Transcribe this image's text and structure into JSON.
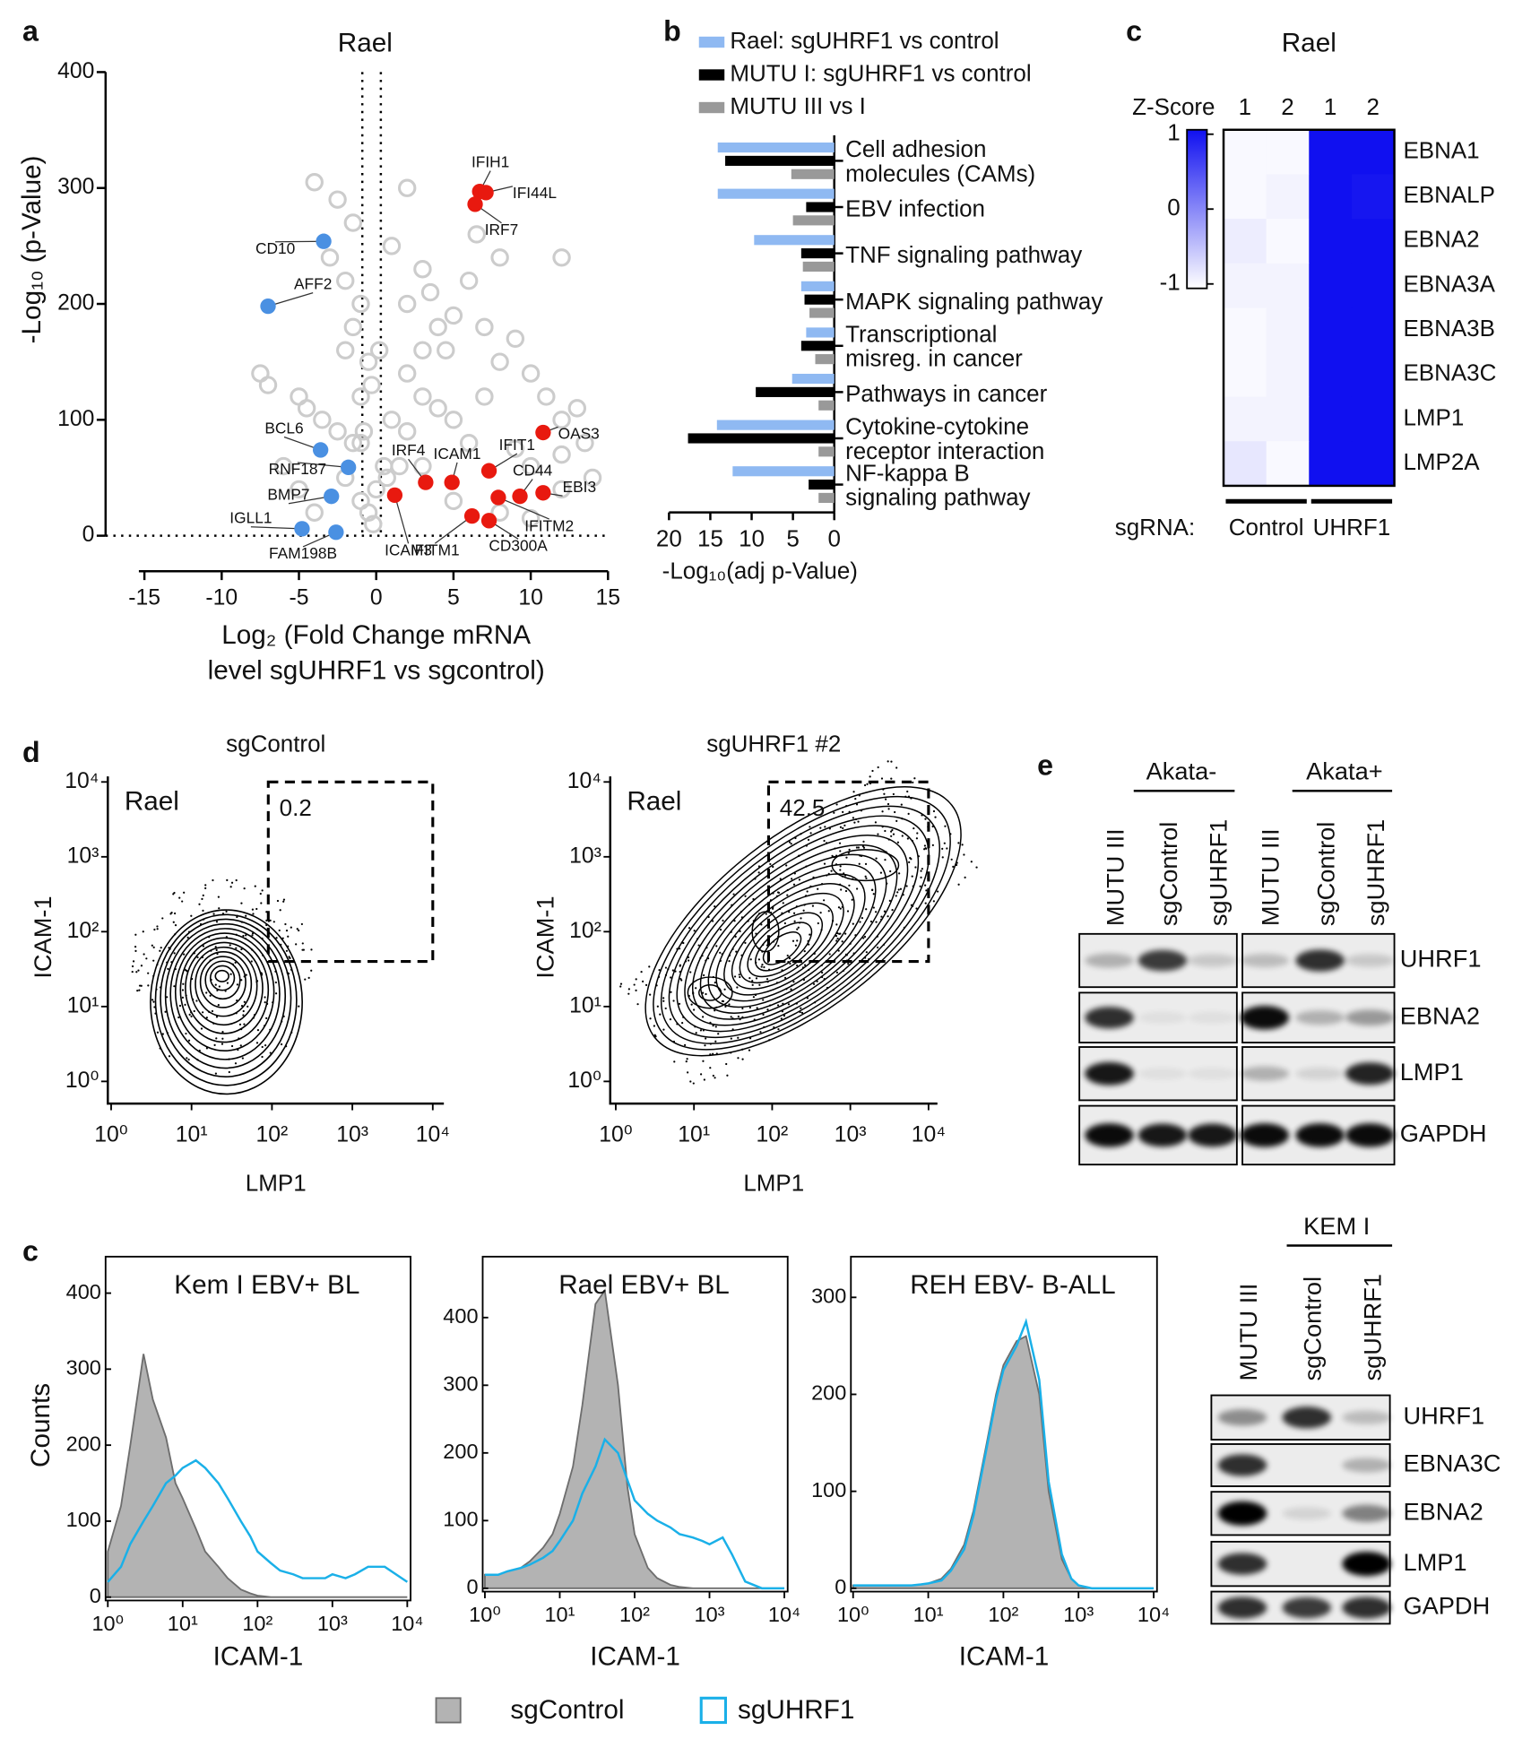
{
  "panel_labels": [
    "a",
    "b",
    "c",
    "d",
    "e",
    "c"
  ],
  "chart_data": [
    {
      "type": "scatter",
      "title": "Rael",
      "xlabel": [
        "Log₂ (Fold Change mRNA",
        "level sgUHRF1 vs sgcontrol)"
      ],
      "ylabel": "-Log₁₀ (p-Value)",
      "xlim": [
        -15,
        15
      ],
      "ylim": [
        0,
        400
      ],
      "xticks": [
        -15,
        -10,
        -5,
        0,
        5,
        10,
        15
      ],
      "yticks": [
        0,
        100,
        200,
        300,
        400
      ],
      "vlines": [
        -0.9,
        0.3
      ],
      "hlines": [
        0
      ],
      "series": [
        {
          "color": "#cccccc",
          "x": [
            -4,
            -2.5,
            -1.5,
            -3,
            -2,
            -1,
            -1.5,
            -2,
            -7.5,
            -7,
            -5,
            -4.5,
            -3.5,
            -2.5,
            -1.5,
            -6,
            -5,
            -4,
            -2,
            -1,
            -1,
            -0.5,
            2,
            3,
            3.5,
            4,
            5,
            4.5,
            6,
            7,
            8,
            9,
            10,
            11,
            12,
            13,
            13.5,
            10,
            9,
            6,
            5,
            3,
            2,
            1.5,
            3,
            5,
            8,
            10,
            12,
            14,
            2,
            3,
            6.5,
            8,
            12,
            1,
            2,
            4,
            7,
            12,
            -0.5,
            0,
            0.5,
            -1,
            1,
            -0.3,
            0.2,
            -0.8,
            0.7,
            -0.2
          ],
          "values": [
            305,
            290,
            270,
            240,
            220,
            200,
            180,
            160,
            140,
            130,
            120,
            110,
            100,
            90,
            80,
            60,
            40,
            20,
            50,
            30,
            120,
            150,
            300,
            230,
            210,
            180,
            190,
            160,
            220,
            180,
            150,
            170,
            140,
            120,
            100,
            110,
            80,
            60,
            75,
            80,
            100,
            120,
            90,
            60,
            60,
            30,
            20,
            15,
            40,
            50,
            140,
            160,
            260,
            240,
            240,
            250,
            200,
            110,
            120,
            70,
            20,
            40,
            60,
            80,
            100,
            130,
            160,
            90,
            50,
            10
          ]
        },
        {
          "color": "#e8190f",
          "labels": [
            "IFIH1",
            "IFI44L",
            "IRF7",
            "OAS3",
            "EBI3",
            "CD44",
            "IFIT1",
            "ICAM1",
            "IRF4",
            "ICAM3",
            "IFITM1",
            "CD300A",
            "IFITM2"
          ],
          "x": [
            6.7,
            7.1,
            6.4,
            10.8,
            10.8,
            9.3,
            7.3,
            4.9,
            3.2,
            1.2,
            6.2,
            7.3,
            7.9
          ],
          "values": [
            297,
            296,
            286,
            89,
            37,
            34,
            56,
            46,
            46,
            35,
            17,
            13,
            33
          ]
        },
        {
          "color": "#4a90e2",
          "labels": [
            "CD10",
            "AFF2",
            "BCL6",
            "RNF187",
            "BMP7",
            "IGLL1",
            "FAM198B"
          ],
          "x": [
            -3.4,
            -7.0,
            -3.6,
            -1.8,
            -2.9,
            -4.8,
            -2.6
          ],
          "values": [
            254,
            198,
            74,
            59,
            34,
            6,
            3
          ]
        }
      ]
    },
    {
      "type": "bar",
      "xlabel": "-Log₁₀(adj p-Value)",
      "xlim": [
        20,
        0
      ],
      "xticks": [
        20,
        15,
        10,
        5,
        0
      ],
      "categories": [
        [
          "Cell adhesion",
          "molecules (CAMs)"
        ],
        [
          "EBV infection"
        ],
        [
          "TNF signaling pathway"
        ],
        [
          "MAPK signaling pathway"
        ],
        [
          "Transcriptional",
          "misreg. in cancer"
        ],
        [
          "Pathways in cancer"
        ],
        [
          "Cytokine-cytokine",
          "receptor interaction"
        ],
        [
          "NF-kappa B",
          "signaling pathway"
        ]
      ],
      "series": [
        {
          "name": "Rael: sgUHRF1 vs control",
          "color": "#8fb9f2",
          "values": [
            14.1,
            14.1,
            9.7,
            4.0,
            3.4,
            5.1,
            14.2,
            12.3
          ]
        },
        {
          "name": "MUTU I: sgUHRF1 vs control",
          "color": "#000000",
          "values": [
            13.2,
            3.4,
            4.0,
            3.6,
            4.0,
            9.5,
            17.7,
            3.1
          ]
        },
        {
          "name": "MUTU III vs I",
          "color": "#999999",
          "values": [
            5.2,
            5.0,
            3.8,
            3.0,
            2.3,
            1.9,
            1.9,
            1.9
          ]
        }
      ]
    },
    {
      "type": "heatmap",
      "title": "Rael",
      "colorbar_label": "Z-Score",
      "zlim": [
        -1,
        1
      ],
      "zticks": [
        1,
        0,
        -1
      ],
      "colors": [
        "#ffffff",
        "#1010f0"
      ],
      "columns": [
        "1",
        "2",
        "1",
        "2"
      ],
      "group_title": "sgRNA:",
      "groups": [
        "Control",
        "UHRF1"
      ],
      "rows": [
        "EBNA1",
        "EBNALP",
        "EBNA2",
        "EBNA3A",
        "EBNA3B",
        "EBNA3C",
        "LMP1",
        "LMP2A"
      ],
      "values": [
        [
          -0.95,
          -0.95,
          1,
          1
        ],
        [
          -0.95,
          -0.9,
          1,
          0.95
        ],
        [
          -0.85,
          -0.95,
          1,
          1
        ],
        [
          -0.9,
          -0.9,
          1,
          1
        ],
        [
          -0.95,
          -0.9,
          1,
          1
        ],
        [
          -0.95,
          -0.9,
          1,
          1
        ],
        [
          -0.9,
          -0.9,
          1,
          1
        ],
        [
          -0.8,
          -0.95,
          1,
          1
        ]
      ]
    },
    {
      "type": "contour",
      "title": "sgControl",
      "sample": "Rael",
      "xlabel": "LMP1",
      "ylabel": "ICAM-1",
      "xscale": "log",
      "yscale": "log",
      "xlim": [
        1,
        10000
      ],
      "ylim": [
        1,
        10000
      ],
      "xticks": [
        {
          "value": 1,
          "label": "10⁰"
        },
        {
          "value": 10,
          "label": "10¹"
        },
        {
          "value": 100,
          "label": "10²"
        },
        {
          "value": 1000,
          "label": "10³"
        },
        {
          "value": 10000,
          "label": "10⁴"
        }
      ],
      "yticks": [
        {
          "value": 1,
          "label": "10⁰"
        },
        {
          "value": 10,
          "label": "10¹"
        },
        {
          "value": 100,
          "label": "10²"
        },
        {
          "value": 1000,
          "label": "10³"
        },
        {
          "value": 10000,
          "label": "10⁴"
        }
      ],
      "gate": {
        "x": [
          90,
          10000
        ],
        "y": [
          40,
          10000
        ],
        "value": 0.2
      }
    },
    {
      "type": "contour",
      "title": "sgUHRF1 #2",
      "sample": "Rael",
      "xlabel": "LMP1",
      "ylabel": "ICAM-1",
      "xscale": "log",
      "yscale": "log",
      "xlim": [
        1,
        10000
      ],
      "ylim": [
        1,
        10000
      ],
      "xticks": [
        {
          "value": 1,
          "label": "10⁰"
        },
        {
          "value": 10,
          "label": "10¹"
        },
        {
          "value": 100,
          "label": "10²"
        },
        {
          "value": 1000,
          "label": "10³"
        },
        {
          "value": 10000,
          "label": "10⁴"
        }
      ],
      "yticks": [
        {
          "value": 1,
          "label": "10⁰"
        },
        {
          "value": 10,
          "label": "10¹"
        },
        {
          "value": 100,
          "label": "10²"
        },
        {
          "value": 1000,
          "label": "10³"
        },
        {
          "value": 10000,
          "label": "10⁴"
        }
      ],
      "gate": {
        "x": [
          90,
          10000
        ],
        "y": [
          40,
          10000
        ],
        "value": 42.5
      }
    },
    {
      "type": "area",
      "title": "Kem I EBV+ BL",
      "xlabel": "ICAM-1",
      "ylabel": "Counts",
      "xscale": "log",
      "xlim": [
        1,
        10000
      ],
      "ylim": [
        0,
        448
      ],
      "yticks": [
        0,
        100,
        200,
        300,
        400
      ],
      "xticks": [
        {
          "value": 1,
          "label": "10⁰"
        },
        {
          "value": 10,
          "label": "10¹"
        },
        {
          "value": 100,
          "label": "10²"
        },
        {
          "value": 1000,
          "label": "10³"
        },
        {
          "value": 10000,
          "label": "10⁴"
        }
      ],
      "x": [
        1,
        1.5,
        2,
        3,
        4,
        6,
        8,
        10,
        15,
        20,
        30,
        40,
        60,
        80,
        100,
        150,
        200,
        300,
        400,
        600,
        800,
        1000,
        1500,
        2000,
        3000,
        5000,
        10000
      ],
      "series": [
        {
          "name": "sgControl",
          "color": "#b3b3b3",
          "values": [
            60,
            120,
            200,
            320,
            260,
            210,
            150,
            130,
            90,
            60,
            40,
            25,
            10,
            5,
            2,
            0,
            0,
            0,
            0,
            0,
            0,
            0,
            0,
            0,
            0,
            0,
            0
          ]
        },
        {
          "name": "sgUHRF1",
          "color": "#1ab0e8",
          "values": [
            20,
            40,
            70,
            100,
            120,
            150,
            160,
            170,
            180,
            170,
            150,
            130,
            100,
            80,
            60,
            45,
            35,
            30,
            25,
            25,
            25,
            30,
            25,
            30,
            40,
            40,
            20
          ]
        }
      ]
    },
    {
      "type": "area",
      "title": "Rael EBV+ BL",
      "xlabel": "ICAM-1",
      "xscale": "log",
      "xlim": [
        1,
        10000
      ],
      "ylim": [
        0,
        490
      ],
      "yticks": [
        0,
        100,
        200,
        300,
        400
      ],
      "xticks": [
        {
          "value": 1,
          "label": "10⁰"
        },
        {
          "value": 10,
          "label": "10¹"
        },
        {
          "value": 100,
          "label": "10²"
        },
        {
          "value": 1000,
          "label": "10³"
        },
        {
          "value": 10000,
          "label": "10⁴"
        }
      ],
      "x": [
        1,
        1.5,
        2,
        3,
        4,
        6,
        8,
        10,
        15,
        20,
        30,
        40,
        60,
        80,
        100,
        150,
        200,
        300,
        400,
        600,
        800,
        1000,
        1500,
        2000,
        3000,
        5000,
        10000
      ],
      "series": [
        {
          "name": "sgControl",
          "color": "#b3b3b3",
          "values": [
            20,
            20,
            25,
            30,
            40,
            60,
            80,
            110,
            180,
            270,
            420,
            440,
            300,
            150,
            80,
            30,
            15,
            5,
            2,
            0,
            0,
            0,
            0,
            0,
            0,
            0,
            0
          ]
        },
        {
          "name": "sgUHRF1",
          "color": "#1ab0e8",
          "values": [
            20,
            20,
            25,
            30,
            35,
            45,
            55,
            70,
            100,
            140,
            180,
            220,
            200,
            160,
            130,
            110,
            100,
            90,
            80,
            75,
            70,
            65,
            75,
            50,
            10,
            0,
            0
          ]
        }
      ]
    },
    {
      "type": "area",
      "title": "REH EBV- B-ALL",
      "xlabel": "ICAM-1",
      "xscale": "log",
      "xlim": [
        1,
        10000
      ],
      "ylim": [
        0,
        342
      ],
      "yticks": [
        0,
        100,
        200,
        300
      ],
      "xticks": [
        {
          "value": 1,
          "label": "10⁰"
        },
        {
          "value": 10,
          "label": "10¹"
        },
        {
          "value": 100,
          "label": "10²"
        },
        {
          "value": 1000,
          "label": "10³"
        },
        {
          "value": 10000,
          "label": "10⁴"
        }
      ],
      "x": [
        1,
        1.5,
        2,
        3,
        4,
        6,
        8,
        10,
        15,
        20,
        30,
        40,
        60,
        80,
        100,
        150,
        200,
        300,
        400,
        600,
        800,
        1000,
        1500,
        2000,
        3000,
        5000,
        10000
      ],
      "series": [
        {
          "name": "sgControl",
          "color": "#b3b3b3",
          "values": [
            3,
            3,
            3,
            3,
            3,
            3,
            4,
            5,
            10,
            20,
            45,
            80,
            150,
            200,
            230,
            255,
            260,
            200,
            100,
            30,
            10,
            3,
            0,
            0,
            0,
            0,
            0
          ]
        },
        {
          "name": "sgUHRF1",
          "color": "#1ab0e8",
          "values": [
            3,
            3,
            3,
            3,
            3,
            3,
            4,
            5,
            8,
            18,
            40,
            75,
            145,
            195,
            225,
            250,
            275,
            215,
            110,
            35,
            10,
            3,
            0,
            0,
            0,
            0,
            0
          ]
        }
      ]
    }
  ],
  "blots": [
    {
      "groups": [
        "Akata-",
        "Akata+"
      ],
      "lanes": [
        "MUTU III",
        "sgControl",
        "sgUHRF1",
        "MUTU III",
        "sgControl",
        "sgUHRF1"
      ],
      "proteins": [
        "UHRF1",
        "EBNA2",
        "LMP1",
        "GAPDH"
      ]
    },
    {
      "groups": [
        "KEM I"
      ],
      "lanes": [
        "MUTU III",
        "sgControl",
        "sgUHRF1"
      ],
      "proteins": [
        "UHRF1",
        "EBNA3C",
        "EBNA2",
        "LMP1",
        "GAPDH"
      ]
    }
  ]
}
